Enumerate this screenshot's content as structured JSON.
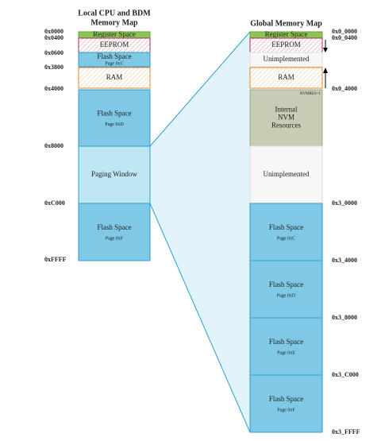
{
  "left": {
    "title": [
      "Local CPU and BDM",
      "Memory Map"
    ],
    "blocks": [
      {
        "label": "Register Space"
      },
      {
        "label": "EEPROM"
      },
      {
        "label": "Flash Space",
        "sublabel": "Page 0xC"
      },
      {
        "label": "RAM"
      },
      {
        "label": "Flash Space",
        "sublabel": "Page 0xD"
      },
      {
        "label": "Paging Window"
      },
      {
        "label": "Flash Space",
        "sublabel": "Page 0xF"
      }
    ],
    "addresses": [
      "0x0000",
      "0x0400",
      "0x0600",
      "0x3800",
      "0x4000",
      "0x8000",
      "0xC000",
      "0xFFFF"
    ]
  },
  "right": {
    "title": [
      "Global Memory Map"
    ],
    "blocks": [
      {
        "label": "Register Space"
      },
      {
        "label": "EEPROM"
      },
      {
        "label": "Unimplemented"
      },
      {
        "label": "RAM"
      },
      {
        "label": "Internal\nNVM\nResources",
        "note": "NVMRES=1"
      },
      {
        "label": "Unimplemented"
      },
      {
        "label": "Flash Space",
        "sublabel": "Page 0xC"
      },
      {
        "label": "Flash Space",
        "sublabel": "Page 0xD"
      },
      {
        "label": "Flash Space",
        "sublabel": "Page 0xE"
      },
      {
        "label": "Flash Space",
        "sublabel": "Page 0xF"
      }
    ],
    "addresses": [
      "0x0_0000",
      "0x0_0400",
      "0x0_4000",
      "0x3_0000",
      "0x3_4000",
      "0x3_8000",
      "0x3_C000",
      "0x3_FFFF"
    ]
  }
}
